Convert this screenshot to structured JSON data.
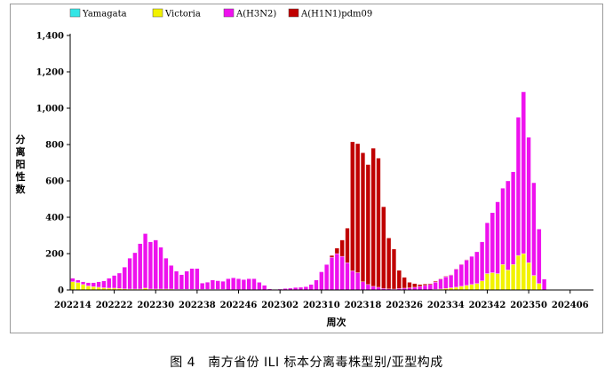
{
  "figure": {
    "caption_label": "图 4",
    "caption_text": "南方省份 ILI 标本分离毒株型别/亚型构成"
  },
  "chart_data": {
    "type": "bar",
    "stacked": true,
    "xlabel": "周次",
    "ylabel": "分离阳性数",
    "ylim": [
      0,
      1400
    ],
    "yticks": [
      0,
      200,
      400,
      600,
      800,
      1000,
      1200,
      1400
    ],
    "ytick_labels": [
      "0",
      "200",
      "400",
      "600",
      "800",
      "1,000",
      "1,200",
      "1,400"
    ],
    "xtick_labels": [
      "202214",
      "202222",
      "202230",
      "202238",
      "202246",
      "202302",
      "202310",
      "202318",
      "202326",
      "202334",
      "202342",
      "202350",
      "202406"
    ],
    "xtick_every": 8,
    "legend_position": "top-left",
    "grid": false,
    "categories": [
      "202214",
      "202215",
      "202216",
      "202217",
      "202218",
      "202219",
      "202220",
      "202221",
      "202222",
      "202223",
      "202224",
      "202225",
      "202226",
      "202227",
      "202228",
      "202229",
      "202230",
      "202231",
      "202232",
      "202233",
      "202234",
      "202235",
      "202236",
      "202237",
      "202238",
      "202239",
      "202240",
      "202241",
      "202242",
      "202243",
      "202244",
      "202245",
      "202246",
      "202247",
      "202248",
      "202249",
      "202250",
      "202251",
      "202252",
      "202301",
      "202302",
      "202303",
      "202304",
      "202305",
      "202306",
      "202307",
      "202308",
      "202309",
      "202310",
      "202311",
      "202312",
      "202313",
      "202314",
      "202315",
      "202316",
      "202317",
      "202318",
      "202319",
      "202320",
      "202321",
      "202322",
      "202323",
      "202324",
      "202325",
      "202326",
      "202327",
      "202328",
      "202329",
      "202330",
      "202331",
      "202332",
      "202333",
      "202334",
      "202335",
      "202336",
      "202337",
      "202338",
      "202339",
      "202340",
      "202341",
      "202342",
      "202343",
      "202344",
      "202345",
      "202346",
      "202347",
      "202348",
      "202349",
      "202350",
      "202351",
      "202352",
      "202401",
      "202402",
      "202403",
      "202404",
      "202405",
      "202406",
      "202407",
      "202408",
      "202409",
      "202410"
    ],
    "series": [
      {
        "name": "Yamagata",
        "color": "#33e6e6",
        "values": [
          0,
          0,
          0,
          0,
          0,
          0,
          0,
          0,
          0,
          0,
          0,
          0,
          0,
          0,
          0,
          0,
          0,
          0,
          0,
          0,
          0,
          0,
          0,
          0,
          0,
          0,
          0,
          0,
          0,
          0,
          0,
          0,
          0,
          0,
          0,
          0,
          0,
          0,
          0,
          0,
          0,
          0,
          0,
          0,
          0,
          0,
          0,
          0,
          0,
          0,
          0,
          0,
          0,
          0,
          0,
          0,
          0,
          0,
          0,
          0,
          0,
          0,
          0,
          0,
          0,
          0,
          0,
          0,
          0,
          0,
          0,
          0,
          0,
          0,
          0,
          0,
          0,
          0,
          0,
          0,
          0,
          0,
          0,
          0,
          0,
          0,
          0,
          0,
          0,
          0,
          0,
          0,
          0,
          0,
          0,
          0,
          0,
          0,
          0,
          0,
          0
        ]
      },
      {
        "name": "Victoria",
        "color": "#f2f200",
        "values": [
          45,
          40,
          30,
          22,
          18,
          15,
          12,
          10,
          10,
          8,
          6,
          5,
          5,
          5,
          10,
          5,
          5,
          5,
          5,
          5,
          4,
          4,
          4,
          3,
          3,
          3,
          3,
          3,
          3,
          3,
          2,
          2,
          2,
          2,
          2,
          2,
          2,
          1,
          1,
          0,
          0,
          0,
          0,
          0,
          0,
          0,
          0,
          0,
          0,
          0,
          0,
          0,
          0,
          0,
          0,
          0,
          0,
          0,
          0,
          0,
          0,
          0,
          0,
          0,
          0,
          0,
          0,
          0,
          0,
          0,
          3,
          5,
          8,
          12,
          15,
          20,
          25,
          30,
          35,
          50,
          90,
          95,
          90,
          140,
          110,
          140,
          190,
          200,
          150,
          80,
          35,
          0,
          0,
          0,
          0,
          0,
          0,
          0,
          0,
          0,
          0
        ]
      },
      {
        "name": "A(H3N2)",
        "color": "#ee11ee",
        "values": [
          20,
          15,
          15,
          18,
          22,
          30,
          38,
          55,
          70,
          85,
          120,
          170,
          200,
          250,
          300,
          260,
          270,
          230,
          170,
          130,
          100,
          80,
          100,
          115,
          115,
          35,
          40,
          52,
          48,
          45,
          60,
          65,
          60,
          55,
          60,
          60,
          40,
          25,
          5,
          3,
          5,
          8,
          10,
          14,
          15,
          18,
          30,
          55,
          100,
          140,
          180,
          200,
          185,
          150,
          105,
          95,
          45,
          30,
          20,
          15,
          8,
          6,
          5,
          8,
          10,
          12,
          15,
          20,
          25,
          30,
          40,
          55,
          65,
          70,
          100,
          120,
          140,
          155,
          175,
          215,
          280,
          330,
          395,
          420,
          490,
          510,
          760,
          890,
          690,
          510,
          300,
          60,
          0,
          0,
          0,
          0,
          0,
          0,
          0,
          0,
          0
        ]
      },
      {
        "name": "A(H1N1)pdm09",
        "color": "#c00000",
        "values": [
          0,
          0,
          0,
          0,
          0,
          0,
          0,
          0,
          0,
          0,
          0,
          0,
          0,
          0,
          0,
          0,
          0,
          0,
          0,
          0,
          0,
          0,
          0,
          0,
          0,
          0,
          0,
          0,
          0,
          0,
          0,
          0,
          0,
          0,
          0,
          0,
          0,
          0,
          0,
          0,
          0,
          0,
          0,
          0,
          0,
          0,
          0,
          0,
          0,
          0,
          10,
          30,
          90,
          190,
          710,
          710,
          710,
          660,
          760,
          710,
          450,
          280,
          220,
          100,
          60,
          30,
          20,
          10,
          8,
          5,
          5,
          3,
          3,
          2,
          2,
          2,
          2,
          0,
          0,
          0,
          0,
          0,
          0,
          0,
          0,
          0,
          0,
          0,
          0,
          0,
          0,
          0,
          0,
          0,
          0,
          0,
          0,
          0,
          0,
          0,
          0
        ]
      }
    ]
  }
}
